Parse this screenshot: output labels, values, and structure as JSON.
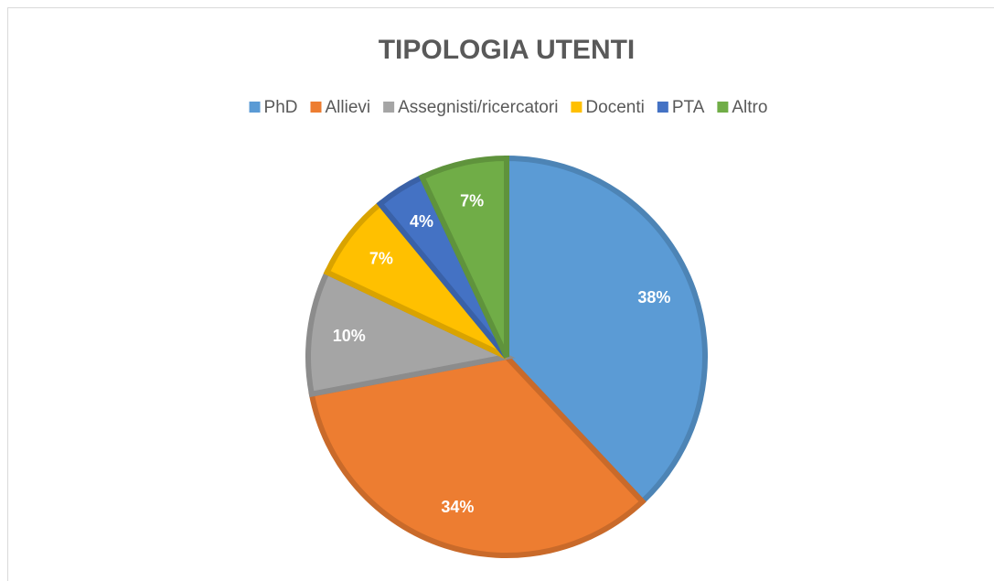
{
  "chart_data": {
    "type": "pie",
    "title": "TIPOLOGIA UTENTI",
    "categories": [
      "PhD",
      "Allievi",
      "Assegnisti/ricercatori",
      "Docenti",
      "PTA",
      "Altro"
    ],
    "values": [
      38,
      34,
      10,
      7,
      4,
      7
    ],
    "value_labels": [
      "38%",
      "34%",
      "10%",
      "7%",
      "4%",
      "7%"
    ],
    "colors": [
      "#5b9bd5",
      "#ed7d31",
      "#a5a5a5",
      "#ffc000",
      "#4472c4",
      "#70ad47"
    ],
    "legend": "top"
  }
}
